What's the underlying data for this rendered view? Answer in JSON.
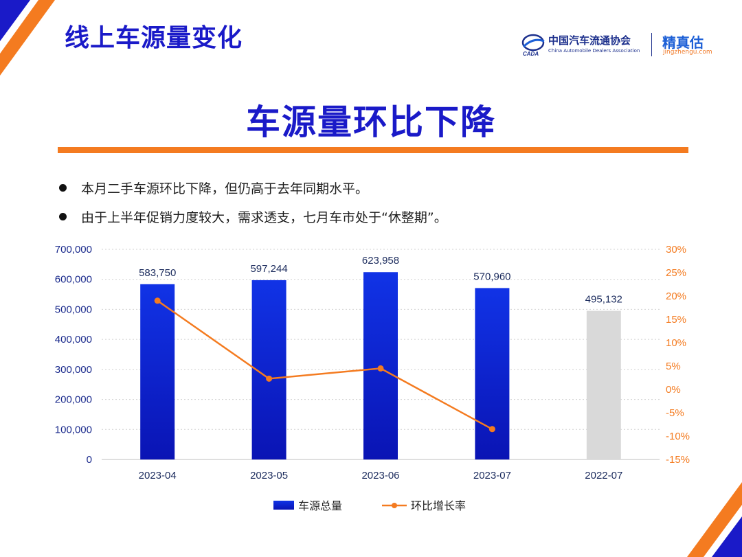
{
  "header": {
    "section_title": "线上车源量变化",
    "association_name_cn": "中国汽车流通协会",
    "association_name_en": "China Automobile Dealers Association",
    "association_logo_text": "CADA",
    "brand_name": "精真估",
    "brand_url": "jingzhengu.com"
  },
  "headline": "车源量环比下降",
  "bullets": [
    "本月二手车源环比下降，但仍高于去年同期水平。",
    "由于上半年促销力度较大，需求透支，七月车市处于“休整期”。"
  ],
  "colors": {
    "title_blue": "#1a1ac8",
    "accent_orange": "#f47b20",
    "bar_blue_top": "#1133e6",
    "bar_blue_bottom": "#0a14b4",
    "bar_gray": "#d9d9d9",
    "axis_left_text": "#1a2a8c",
    "axis_right_text": "#f47b20"
  },
  "chart_data": {
    "type": "bar",
    "categories": [
      "2023-04",
      "2023-05",
      "2023-06",
      "2023-07",
      "2022-07"
    ],
    "series": [
      {
        "name": "车源总量",
        "type": "bar",
        "axis": "left",
        "values": [
          583750,
          597244,
          623958,
          570960,
          495132
        ],
        "labels": [
          "583,750",
          "597,244",
          "623,958",
          "570,960",
          "495,132"
        ],
        "highlight_last_gray": true
      },
      {
        "name": "环比增长率",
        "type": "line",
        "axis": "right",
        "values": [
          19.0,
          2.3,
          4.5,
          -8.5,
          null
        ]
      }
    ],
    "left_axis": {
      "ylim": [
        0,
        700000
      ],
      "ticks": [
        0,
        100000,
        200000,
        300000,
        400000,
        500000,
        600000,
        700000
      ],
      "tick_labels": [
        "0",
        "100,000",
        "200,000",
        "300,000",
        "400,000",
        "500,000",
        "600,000",
        "700,000"
      ]
    },
    "right_axis": {
      "ylim": [
        -15,
        30
      ],
      "ticks": [
        -15,
        -10,
        -5,
        0,
        5,
        10,
        15,
        20,
        25,
        30
      ],
      "tick_labels": [
        "-15%",
        "-10%",
        "-5%",
        "0%",
        "5%",
        "10%",
        "15%",
        "20%",
        "25%",
        "30%"
      ]
    },
    "grid": "dotted-horizontal",
    "legend": "bottom-center"
  }
}
